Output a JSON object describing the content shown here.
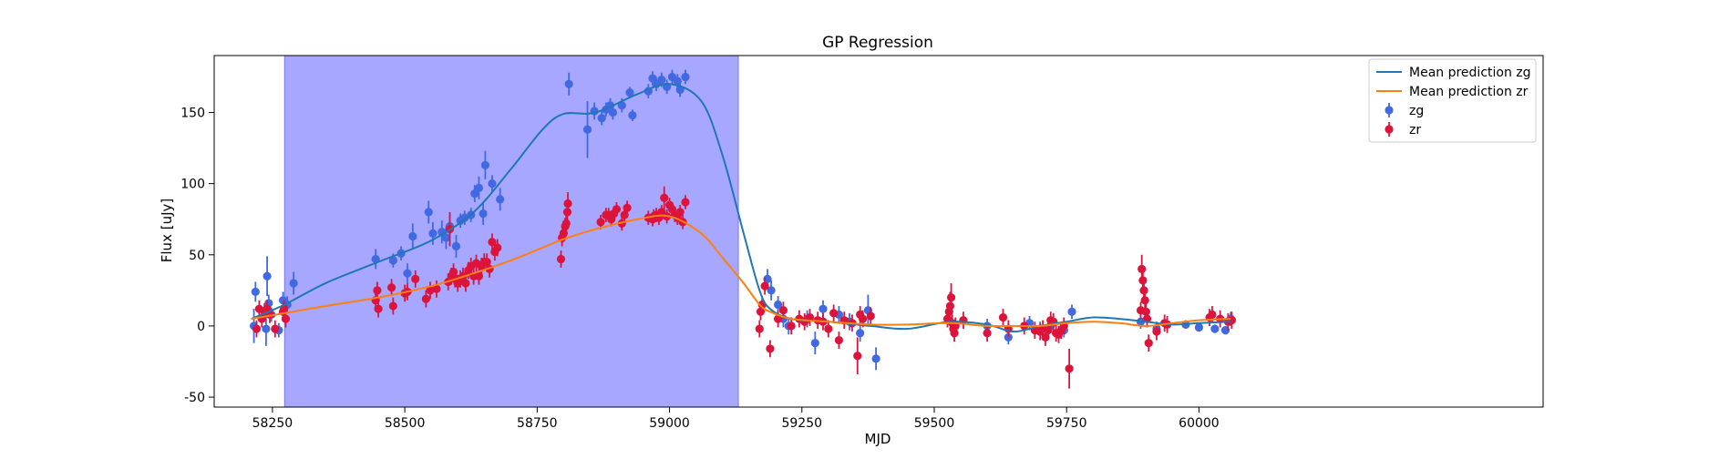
{
  "chart_data": {
    "type": "scatter",
    "title": "GP Regression",
    "xlabel": "MJD",
    "ylabel": "Flux [uJy]",
    "xlim": [
      58140,
      60650
    ],
    "ylim": [
      -57,
      190
    ],
    "xticks": [
      58250,
      58500,
      58750,
      59000,
      59250,
      59500,
      59750,
      60000
    ],
    "yticks": [
      -50,
      0,
      50,
      100,
      150
    ],
    "grid": false,
    "legend_position": "top-right",
    "highlight_span": {
      "x_start": 58273,
      "x_end": 59130,
      "color": "#a7a7ff"
    },
    "colors": {
      "zg_line": "#1f77b4",
      "zr_line": "#ff7f0e",
      "zg_points": "#4169e1",
      "zr_points": "#dc143c"
    },
    "series": [
      {
        "name": "Mean prediction zg",
        "kind": "line",
        "x": [
          58210,
          58273,
          58350,
          58450,
          58550,
          58630,
          58700,
          58760,
          58800,
          58860,
          58940,
          59000,
          59060,
          59100,
          59140,
          59170,
          59190,
          59230,
          59300,
          59380,
          59450,
          59530,
          59600,
          59650,
          59700,
          59750,
          59800,
          59850,
          59900,
          59950,
          60000,
          60060
        ],
        "y": [
          5,
          15,
          30,
          45,
          60,
          80,
          110,
          138,
          149,
          150,
          163,
          170,
          158,
          120,
          65,
          25,
          12,
          5,
          3,
          0,
          -2,
          3,
          1,
          -4,
          0,
          3,
          6,
          5,
          3,
          1,
          2,
          3
        ]
      },
      {
        "name": "Mean prediction zr",
        "kind": "line",
        "x": [
          58210,
          58273,
          58350,
          58450,
          58550,
          58630,
          58700,
          58760,
          58800,
          58860,
          58940,
          59000,
          59060,
          59100,
          59140,
          59170,
          59190,
          59230,
          59300,
          59380,
          59450,
          59530,
          59600,
          59650,
          59700,
          59750,
          59800,
          59850,
          59900,
          59950,
          60000,
          60060
        ],
        "y": [
          5,
          9,
          14,
          20,
          28,
          37,
          46,
          55,
          61,
          68,
          75,
          77,
          65,
          48,
          30,
          15,
          10,
          5,
          3,
          1,
          1,
          2,
          0,
          0,
          0,
          2,
          3,
          2,
          0,
          2,
          4,
          5
        ]
      },
      {
        "name": "zg",
        "kind": "errorbar",
        "x": [
          58215,
          58218,
          58238,
          58240,
          58243,
          58248,
          58262,
          58270,
          58278,
          58290,
          58445,
          58478,
          58493,
          58505,
          58515,
          58545,
          58553,
          58570,
          58578,
          58585,
          58597,
          58605,
          58613,
          58625,
          58632,
          58640,
          58648,
          58652,
          58665,
          58680,
          58810,
          58845,
          58858,
          58872,
          58880,
          58888,
          58893,
          58910,
          58925,
          58930,
          58960,
          58968,
          58975,
          58985,
          58995,
          59005,
          59015,
          59020,
          59030,
          59185,
          59192,
          59205,
          59215,
          59225,
          59260,
          59275,
          59290,
          59320,
          59340,
          59360,
          59375,
          59390,
          59600,
          59640,
          59680,
          59700,
          59720,
          59745,
          59760,
          59890,
          59920,
          59975,
          60000,
          60030,
          60050,
          60060
        ],
        "y": [
          0,
          24,
          -2,
          35,
          16,
          8,
          -3,
          18,
          15,
          30,
          47,
          46,
          51,
          37,
          63,
          80,
          65,
          66,
          62,
          70,
          56,
          74,
          76,
          78,
          93,
          97,
          79,
          113,
          100,
          89,
          170,
          138,
          151,
          146,
          152,
          155,
          150,
          155,
          164,
          148,
          165,
          174,
          170,
          173,
          168,
          175,
          172,
          166,
          175,
          33,
          25,
          15,
          5,
          0,
          5,
          -12,
          12,
          8,
          3,
          -5,
          11,
          -23,
          0,
          -8,
          2,
          -2,
          0,
          -3,
          10,
          3,
          -2,
          1,
          -1,
          -2,
          -3,
          5
        ],
        "yerr": [
          12,
          7,
          12,
          14,
          6,
          5,
          5,
          6,
          6,
          8,
          7,
          5,
          5,
          7,
          9,
          8,
          8,
          8,
          8,
          8,
          8,
          5,
          5,
          5,
          6,
          8,
          8,
          10,
          6,
          8,
          8,
          20,
          6,
          5,
          5,
          5,
          5,
          5,
          4,
          4,
          5,
          5,
          5,
          5,
          5,
          5,
          5,
          5,
          5,
          7,
          7,
          6,
          6,
          6,
          6,
          8,
          6,
          6,
          6,
          6,
          11,
          8,
          5,
          5,
          5,
          5,
          5,
          5,
          5,
          5,
          5,
          3,
          3,
          3,
          3,
          5
        ]
      },
      {
        "name": "zr",
        "kind": "errorbar",
        "x": [
          58220,
          58225,
          58230,
          58235,
          58240,
          58245,
          58255,
          58270,
          58272,
          58275,
          58445,
          58448,
          58450,
          58475,
          58478,
          58500,
          58505,
          58520,
          58540,
          58548,
          58560,
          58582,
          58585,
          58588,
          58592,
          58595,
          58600,
          58605,
          58610,
          58615,
          58620,
          58625,
          58630,
          58635,
          58640,
          58645,
          58650,
          58655,
          58660,
          58665,
          58670,
          58675,
          58795,
          58797,
          58800,
          58803,
          58805,
          58807,
          58808,
          58870,
          58880,
          58885,
          58890,
          58895,
          58900,
          58910,
          58915,
          58920,
          58960,
          58968,
          58970,
          58975,
          58980,
          58985,
          58990,
          58995,
          59000,
          59005,
          59010,
          59015,
          59020,
          59025,
          59030,
          59170,
          59172,
          59175,
          59180,
          59190,
          59205,
          59215,
          59230,
          59245,
          59255,
          59265,
          59280,
          59290,
          59300,
          59310,
          59320,
          59330,
          59345,
          59355,
          59360,
          59365,
          59380,
          59525,
          59528,
          59530,
          59532,
          59534,
          59536,
          59538,
          59540,
          59555,
          59600,
          59630,
          59640,
          59670,
          59690,
          59700,
          59705,
          59710,
          59715,
          59720,
          59725,
          59730,
          59735,
          59740,
          59745,
          59755,
          59890,
          59892,
          59894,
          59896,
          59898,
          59900,
          59902,
          59905,
          59920,
          59935,
          59940,
          60020,
          60025,
          60040,
          60055,
          60062
        ],
        "y": [
          -2,
          12,
          5,
          10,
          12,
          8,
          -2,
          10,
          12,
          5,
          18,
          25,
          12,
          27,
          14,
          23,
          24,
          33,
          19,
          25,
          26,
          31,
          68,
          35,
          38,
          33,
          30,
          33,
          35,
          30,
          39,
          42,
          35,
          44,
          35,
          42,
          45,
          45,
          40,
          59,
          52,
          55,
          47,
          62,
          65,
          70,
          72,
          80,
          86,
          73,
          78,
          78,
          75,
          79,
          82,
          72,
          78,
          83,
          76,
          75,
          77,
          78,
          76,
          80,
          90,
          77,
          85,
          82,
          78,
          76,
          80,
          73,
          87,
          -2,
          10,
          15,
          28,
          -16,
          5,
          11,
          0,
          5,
          3,
          6,
          4,
          3,
          -2,
          9,
          -10,
          4,
          2,
          -21,
          8,
          5,
          7,
          5,
          10,
          14,
          20,
          2,
          -2,
          -5,
          0,
          4,
          -5,
          6,
          -2,
          0,
          -3,
          -4,
          -2,
          -8,
          -3,
          4,
          3,
          -5,
          -6,
          -3,
          0,
          -30,
          11,
          40,
          32,
          25,
          18,
          10,
          5,
          -12,
          -4,
          2,
          1,
          6,
          8,
          5,
          3,
          4
        ],
        "yerr": [
          6,
          6,
          6,
          6,
          6,
          6,
          6,
          6,
          6,
          6,
          6,
          6,
          6,
          6,
          6,
          6,
          6,
          6,
          6,
          6,
          6,
          6,
          12,
          6,
          6,
          6,
          6,
          6,
          6,
          6,
          6,
          6,
          6,
          6,
          6,
          6,
          6,
          6,
          6,
          6,
          6,
          6,
          6,
          6,
          6,
          6,
          6,
          6,
          8,
          5,
          5,
          5,
          5,
          5,
          5,
          5,
          5,
          5,
          5,
          5,
          5,
          5,
          5,
          5,
          8,
          5,
          5,
          5,
          5,
          5,
          5,
          5,
          5,
          6,
          6,
          6,
          6,
          6,
          6,
          6,
          6,
          6,
          6,
          6,
          6,
          6,
          6,
          6,
          6,
          6,
          6,
          13,
          6,
          6,
          6,
          6,
          6,
          10,
          10,
          6,
          6,
          6,
          6,
          6,
          6,
          6,
          6,
          6,
          6,
          6,
          6,
          6,
          6,
          6,
          6,
          6,
          6,
          6,
          6,
          14,
          6,
          10,
          8,
          6,
          6,
          6,
          6,
          6,
          6,
          6,
          6,
          6,
          6,
          6,
          6,
          6
        ]
      }
    ]
  }
}
